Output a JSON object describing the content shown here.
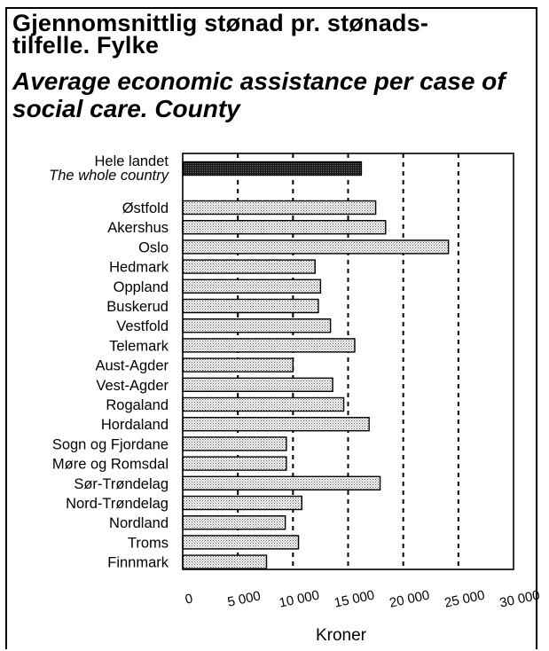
{
  "title": "Gjennomsnittlig stønad pr. stønads-tilfelle. Fylke",
  "title_line1": "Gjennomsnittlig stønad pr. stønads-",
  "title_line2": "tilfelle. Fylke",
  "subtitle": "Average economic assistance per case of social care. County",
  "subtitle_line1": "Average economic assistance per case of",
  "subtitle_line2": "social care. County",
  "chart_data": {
    "type": "bar",
    "orientation": "horizontal",
    "title": "Gjennomsnittlig stønad pr. stønads-tilfelle. Fylke",
    "subtitle": "Average economic assistance per case of social care. County",
    "xlabel": "Kroner",
    "ylabel": "",
    "xlim": [
      0,
      30000
    ],
    "xticks": [
      0,
      5000,
      10000,
      15000,
      20000,
      25000,
      30000
    ],
    "xtick_labels": [
      "0",
      "5 000",
      "10 000",
      "15 000",
      "20 000",
      "25 000",
      "30 000"
    ],
    "grid": "vertical dashed lines at 5 000 intervals",
    "highlight_color": "#3a3a3a",
    "bar_color": "#d4d4d4",
    "categories": [
      {
        "label": "Hele landet",
        "label2": "The whole country",
        "value": 16200,
        "highlight": true
      },
      {
        "label": "Østfold",
        "value": 17500
      },
      {
        "label": "Akershus",
        "value": 18400
      },
      {
        "label": "Oslo",
        "value": 24100
      },
      {
        "label": "Hedmark",
        "value": 12000
      },
      {
        "label": "Oppland",
        "value": 12500
      },
      {
        "label": "Buskerud",
        "value": 12300
      },
      {
        "label": "Vestfold",
        "value": 13400
      },
      {
        "label": "Telemark",
        "value": 15600
      },
      {
        "label": "Aust-Agder",
        "value": 10000
      },
      {
        "label": "Vest-Agder",
        "value": 13600
      },
      {
        "label": "Rogaland",
        "value": 14600
      },
      {
        "label": "Hordaland",
        "value": 16900
      },
      {
        "label": "Sogn og Fjordane",
        "value": 9400
      },
      {
        "label": "Møre og Romsdal",
        "value": 9400
      },
      {
        "label": "Sør-Trøndelag",
        "value": 17900
      },
      {
        "label": "Nord-Trøndelag",
        "value": 10800
      },
      {
        "label": "Nordland",
        "value": 9300
      },
      {
        "label": "Troms",
        "value": 10500
      },
      {
        "label": "Finnmark",
        "value": 7600
      }
    ]
  }
}
